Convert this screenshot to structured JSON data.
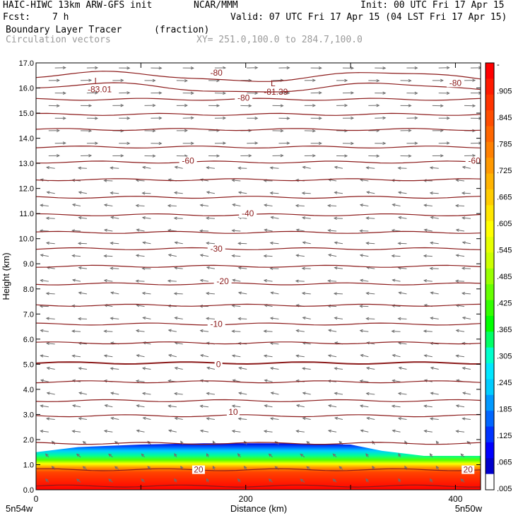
{
  "header": {
    "model": "HAIC-HIWC 13km ARW-GFS init",
    "org": "NCAR/MMM",
    "init": "Init: 00 UTC Fri 17 Apr 15",
    "fcst_label": "Fcst:",
    "fcst_value": "7 h",
    "valid": "Valid: 07 UTC Fri 17 Apr 15 (04 LST Fri 17 Apr 15)",
    "field1": "Boundary Layer Tracer",
    "field1_units": "(fraction)",
    "field2": "Circulation vectors",
    "xy_range": "XY= 251.0,100.0 to 284.7,100.0"
  },
  "chart_data": {
    "type": "cross-section",
    "ylabel": "Height (km)",
    "xlabel": "Distance (km)",
    "ylim": [
      0,
      17
    ],
    "xlim": [
      0,
      424
    ],
    "y_ticks": [
      "0.0",
      "1.0",
      "2.0",
      "3.0",
      "4.0",
      "5.0",
      "6.0",
      "7.0",
      "8.0",
      "9.0",
      "10.0",
      "11.0",
      "12.0",
      "13.0",
      "14.0",
      "15.0",
      "16.0",
      "17.0"
    ],
    "x_ticks": [
      {
        "value": 0,
        "label": "0"
      },
      {
        "value": 200,
        "label": "200"
      },
      {
        "value": 400,
        "label": "400"
      }
    ],
    "x_endpoints": {
      "left": "5n54w",
      "right": "5n50w"
    },
    "colorbar": {
      "labels": [
        "-",
        ".905",
        ".845",
        ".785",
        ".725",
        ".665",
        ".605",
        ".545",
        ".485",
        ".425",
        ".365",
        ".305",
        ".245",
        ".185",
        ".125",
        ".065",
        ".005"
      ],
      "colors": [
        "#ff0000",
        "#ff1a00",
        "#ff3300",
        "#ff4d00",
        "#ff6600",
        "#ff8000",
        "#ff9900",
        "#ffb300",
        "#ffcc00",
        "#ffe600",
        "#ffff00",
        "#e6ff00",
        "#ccff00",
        "#99ff00",
        "#66ff00",
        "#33ff00",
        "#00ff00",
        "#00ff66",
        "#00ffcc",
        "#00e6ff",
        "#00ccff",
        "#0099ff",
        "#0066ff",
        "#0033ff",
        "#0000ff",
        "#0000cc",
        "#ffffff"
      ]
    },
    "contour_color": "#8b1a1a",
    "contour_labels": [
      {
        "text": "-80",
        "x": 172,
        "y": 16.6
      },
      {
        "text": "-80",
        "x": 400,
        "y": 16.2
      },
      {
        "text": "-80",
        "x": 198,
        "y": 15.6
      },
      {
        "text": "-60",
        "x": 145,
        "y": 13.1
      },
      {
        "text": "-60",
        "x": 418,
        "y": 13.1
      },
      {
        "text": "-40",
        "x": 202,
        "y": 11.0
      },
      {
        "text": "-30",
        "x": 172,
        "y": 9.6
      },
      {
        "text": "-20",
        "x": 178,
        "y": 8.3
      },
      {
        "text": "-10",
        "x": 172,
        "y": 6.6
      },
      {
        "text": "0",
        "x": 174,
        "y": 5.0
      },
      {
        "text": "10",
        "x": 188,
        "y": 3.1
      },
      {
        "text": "20",
        "x": 155,
        "y": 0.8
      },
      {
        "text": "20",
        "x": 412,
        "y": 0.8
      }
    ],
    "lows": [
      {
        "symbol": "L",
        "value": "-83.01",
        "x": 58,
        "y": 16.0
      },
      {
        "symbol": "L",
        "value": "-81.39",
        "x": 226,
        "y": 15.9
      }
    ],
    "tracer_top_km": [
      {
        "x": 0,
        "top": 1.5
      },
      {
        "x": 40,
        "top": 1.7
      },
      {
        "x": 100,
        "top": 1.8
      },
      {
        "x": 160,
        "top": 1.85
      },
      {
        "x": 240,
        "top": 1.85
      },
      {
        "x": 300,
        "top": 1.8
      },
      {
        "x": 330,
        "top": 1.55
      },
      {
        "x": 370,
        "top": 1.35
      },
      {
        "x": 424,
        "top": 1.35
      }
    ]
  }
}
